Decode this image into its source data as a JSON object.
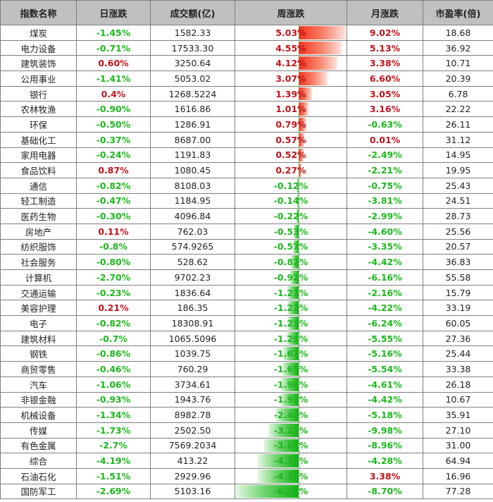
{
  "table": {
    "headers": [
      "指数名称",
      "日涨跌",
      "成交额(亿)",
      "周涨跌",
      "月涨跌",
      "市盈率(倍)"
    ],
    "colors": {
      "up": "#c0141c",
      "down": "#1db71d",
      "bar_up": "#f2331c",
      "bar_down": "#10b010",
      "header_bg": "#c0c0c0"
    },
    "rows": [
      {
        "name": "煤炭",
        "day": "-1.45%",
        "volume": "1582.33",
        "week": "5.03%",
        "month": "9.02%",
        "pe": "18.68"
      },
      {
        "name": "电力设备",
        "day": "-0.71%",
        "volume": "17533.30",
        "week": "4.55%",
        "month": "5.13%",
        "pe": "36.92"
      },
      {
        "name": "建筑装饰",
        "day": "0.60%",
        "volume": "3250.64",
        "week": "4.12%",
        "month": "3.38%",
        "pe": "10.71"
      },
      {
        "name": "公用事业",
        "day": "-1.41%",
        "volume": "5053.02",
        "week": "3.07%",
        "month": "6.60%",
        "pe": "20.39"
      },
      {
        "name": "银行",
        "day": "0.4%",
        "volume": "1268.5224",
        "week": "1.39%",
        "month": "3.05%",
        "pe": "6.78"
      },
      {
        "name": "农林牧渔",
        "day": "-0.90%",
        "volume": "1616.86",
        "week": "1.01%",
        "month": "3.16%",
        "pe": "22.22"
      },
      {
        "name": "环保",
        "day": "-0.50%",
        "volume": "1286.91",
        "week": "0.79%",
        "month": "-0.63%",
        "pe": "26.11"
      },
      {
        "name": "基础化工",
        "day": "-0.37%",
        "volume": "8687.00",
        "week": "0.57%",
        "month": "0.01%",
        "pe": "31.12"
      },
      {
        "name": "家用电器",
        "day": "-0.24%",
        "volume": "1191.83",
        "week": "0.52%",
        "month": "-2.49%",
        "pe": "14.95"
      },
      {
        "name": "食品饮料",
        "day": "0.87%",
        "volume": "1080.45",
        "week": "0.27%",
        "month": "-2.21%",
        "pe": "19.95"
      },
      {
        "name": "通信",
        "day": "-0.82%",
        "volume": "8108.03",
        "week": "-0.12%",
        "month": "-0.75%",
        "pe": "25.43"
      },
      {
        "name": "轻工制造",
        "day": "-0.47%",
        "volume": "1184.95",
        "week": "-0.14%",
        "month": "-3.81%",
        "pe": "24.51"
      },
      {
        "name": "医药生物",
        "day": "-0.30%",
        "volume": "4096.84",
        "week": "-0.22%",
        "month": "-2.99%",
        "pe": "28.73"
      },
      {
        "name": "房地产",
        "day": "0.11%",
        "volume": "762.03",
        "week": "-0.53%",
        "month": "-4.60%",
        "pe": "25.56"
      },
      {
        "name": "纺织服饰",
        "day": "-0.8%",
        "volume": "574.9265",
        "week": "-0.57%",
        "month": "-3.35%",
        "pe": "20.57"
      },
      {
        "name": "社会服务",
        "day": "-0.80%",
        "volume": "528.62",
        "week": "-0.82%",
        "month": "-4.42%",
        "pe": "36.83"
      },
      {
        "name": "计算机",
        "day": "-2.70%",
        "volume": "9702.23",
        "week": "-0.92%",
        "month": "-6.16%",
        "pe": "55.58"
      },
      {
        "name": "交通运输",
        "day": "-0.23%",
        "volume": "1836.64",
        "week": "-1.21%",
        "month": "-2.16%",
        "pe": "15.79"
      },
      {
        "name": "美容护理",
        "day": "0.21%",
        "volume": "186.35",
        "week": "-1.22%",
        "month": "-4.22%",
        "pe": "33.19"
      },
      {
        "name": "电子",
        "day": "-0.82%",
        "volume": "18308.91",
        "week": "-1.23%",
        "month": "-6.24%",
        "pe": "60.05"
      },
      {
        "name": "建筑材料",
        "day": "-0.7%",
        "volume": "1065.5096",
        "week": "-1.29%",
        "month": "-5.55%",
        "pe": "27.36"
      },
      {
        "name": "钢铁",
        "day": "-0.86%",
        "volume": "1039.75",
        "week": "-1.67%",
        "month": "-5.16%",
        "pe": "25.44"
      },
      {
        "name": "商贸零售",
        "day": "-0.46%",
        "volume": "760.29",
        "week": "-1.69%",
        "month": "-5.54%",
        "pe": "33.38"
      },
      {
        "name": "汽车",
        "day": "-1.06%",
        "volume": "3734.61",
        "week": "-1.90%",
        "month": "-4.61%",
        "pe": "26.18"
      },
      {
        "name": "非银金融",
        "day": "-0.93%",
        "volume": "1943.76",
        "week": "-1.93%",
        "month": "-4.42%",
        "pe": "10.67"
      },
      {
        "name": "机械设备",
        "day": "-1.34%",
        "volume": "8982.78",
        "week": "-2.44%",
        "month": "-5.18%",
        "pe": "35.91"
      },
      {
        "name": "传媒",
        "day": "-1.73%",
        "volume": "2502.50",
        "week": "-3.23%",
        "month": "-9.98%",
        "pe": "27.10"
      },
      {
        "name": "有色金属",
        "day": "-2.7%",
        "volume": "7569.2034",
        "week": "-3.69%",
        "month": "-8.96%",
        "pe": "31.00"
      },
      {
        "name": "综合",
        "day": "-4.19%",
        "volume": "413.22",
        "week": "-4.30%",
        "month": "-4.28%",
        "pe": "64.94"
      },
      {
        "name": "石油石化",
        "day": "-1.51%",
        "volume": "2929.96",
        "week": "-4.33%",
        "month": "3.38%",
        "pe": "16.96"
      },
      {
        "name": "国防军工",
        "day": "-2.69%",
        "volume": "5103.16",
        "week": "-6.64%",
        "month": "-8.70%",
        "pe": "77.28"
      }
    ]
  },
  "chart_data": {
    "type": "table",
    "title": "",
    "columns": [
      "指数名称",
      "日涨跌",
      "成交额(亿)",
      "周涨跌",
      "月涨跌",
      "市盈率(倍)"
    ],
    "categories": [
      "煤炭",
      "电力设备",
      "建筑装饰",
      "公用事业",
      "银行",
      "农林牧渔",
      "环保",
      "基础化工",
      "家用电器",
      "食品饮料",
      "通信",
      "轻工制造",
      "医药生物",
      "房地产",
      "纺织服饰",
      "社会服务",
      "计算机",
      "交通运输",
      "美容护理",
      "电子",
      "建筑材料",
      "钢铁",
      "商贸零售",
      "汽车",
      "非银金融",
      "机械设备",
      "传媒",
      "有色金属",
      "综合",
      "石油石化",
      "国防军工"
    ],
    "series": [
      {
        "name": "日涨跌(%)",
        "values": [
          -1.45,
          -0.71,
          0.6,
          -1.41,
          0.4,
          -0.9,
          -0.5,
          -0.37,
          -0.24,
          0.87,
          -0.82,
          -0.47,
          -0.3,
          0.11,
          -0.8,
          -0.8,
          -2.7,
          -0.23,
          0.21,
          -0.82,
          -0.7,
          -0.86,
          -0.46,
          -1.06,
          -0.93,
          -1.34,
          -1.73,
          -2.7,
          -4.19,
          -1.51,
          -2.69
        ]
      },
      {
        "name": "成交额(亿)",
        "values": [
          1582.33,
          17533.3,
          3250.64,
          5053.02,
          1268.5224,
          1616.86,
          1286.91,
          8687.0,
          1191.83,
          1080.45,
          8108.03,
          1184.95,
          4096.84,
          762.03,
          574.9265,
          528.62,
          9702.23,
          1836.64,
          186.35,
          18308.91,
          1065.5096,
          1039.75,
          760.29,
          3734.61,
          1943.76,
          8982.78,
          2502.5,
          7569.2034,
          413.22,
          2929.96,
          5103.16
        ]
      },
      {
        "name": "周涨跌(%)",
        "values": [
          5.03,
          4.55,
          4.12,
          3.07,
          1.39,
          1.01,
          0.79,
          0.57,
          0.52,
          0.27,
          -0.12,
          -0.14,
          -0.22,
          -0.53,
          -0.57,
          -0.82,
          -0.92,
          -1.21,
          -1.22,
          -1.23,
          -1.29,
          -1.67,
          -1.69,
          -1.9,
          -1.93,
          -2.44,
          -3.23,
          -3.69,
          -4.3,
          -4.33,
          -6.64
        ]
      },
      {
        "name": "月涨跌(%)",
        "values": [
          9.02,
          5.13,
          3.38,
          6.6,
          3.05,
          3.16,
          -0.63,
          0.01,
          -2.49,
          -2.21,
          -0.75,
          -3.81,
          -2.99,
          -4.6,
          -3.35,
          -4.42,
          -6.16,
          -2.16,
          -4.22,
          -6.24,
          -5.55,
          -5.16,
          -5.54,
          -4.61,
          -4.42,
          -5.18,
          -9.98,
          -8.96,
          -4.28,
          3.38,
          -8.7
        ]
      },
      {
        "name": "市盈率(倍)",
        "values": [
          18.68,
          36.92,
          10.71,
          20.39,
          6.78,
          22.22,
          26.11,
          31.12,
          14.95,
          19.95,
          25.43,
          24.51,
          28.73,
          25.56,
          20.57,
          36.83,
          55.58,
          15.79,
          33.19,
          60.05,
          27.36,
          25.44,
          33.38,
          26.18,
          10.67,
          35.91,
          27.1,
          31.0,
          64.94,
          16.96,
          77.28
        ]
      }
    ],
    "data_bars": {
      "column": "周涨跌",
      "axis_position": "center-left",
      "positive_color": "#f2331c",
      "negative_color": "#10b010"
    },
    "xlabel": "",
    "ylabel": ""
  }
}
